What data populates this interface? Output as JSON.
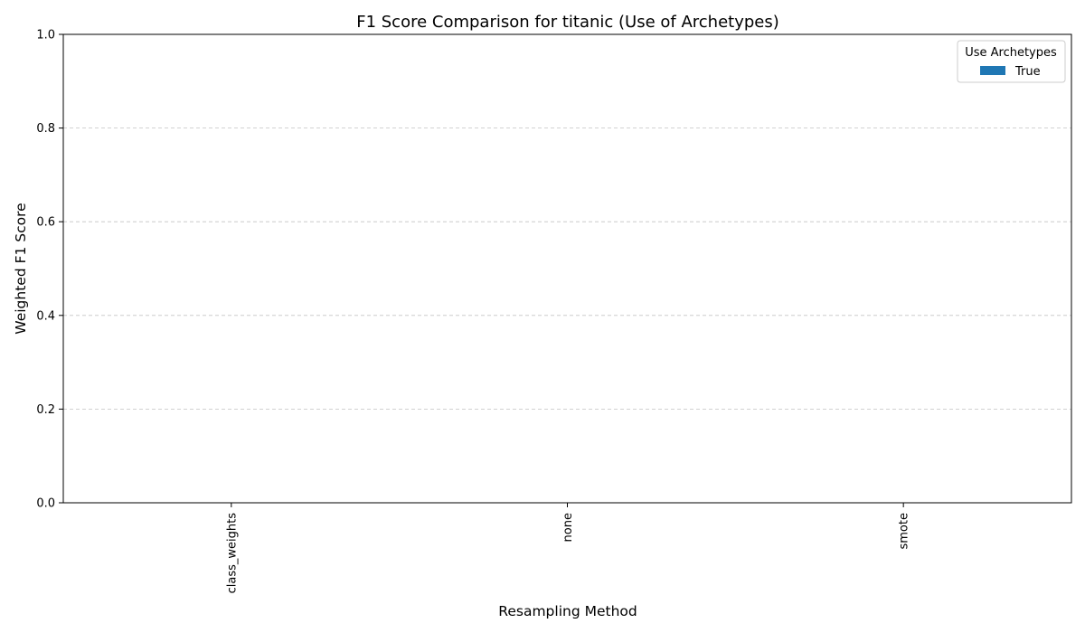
{
  "chart_data": {
    "type": "bar",
    "title": "F1 Score Comparison for titanic (Use of Archetypes)",
    "xlabel": "Resampling Method",
    "ylabel": "Weighted F1 Score",
    "categories": [
      "class_weights",
      "none",
      "smote"
    ],
    "series": [
      {
        "name": "True",
        "values": [
          0,
          0,
          0
        ],
        "color": "#1f77b4"
      }
    ],
    "ylim": [
      0,
      1
    ],
    "yticks": [
      "0.0",
      "0.2",
      "0.4",
      "0.6",
      "0.8",
      "1.0"
    ],
    "grid": "y-dashed",
    "legend": {
      "title": "Use Archetypes",
      "placement": "top-right"
    }
  }
}
